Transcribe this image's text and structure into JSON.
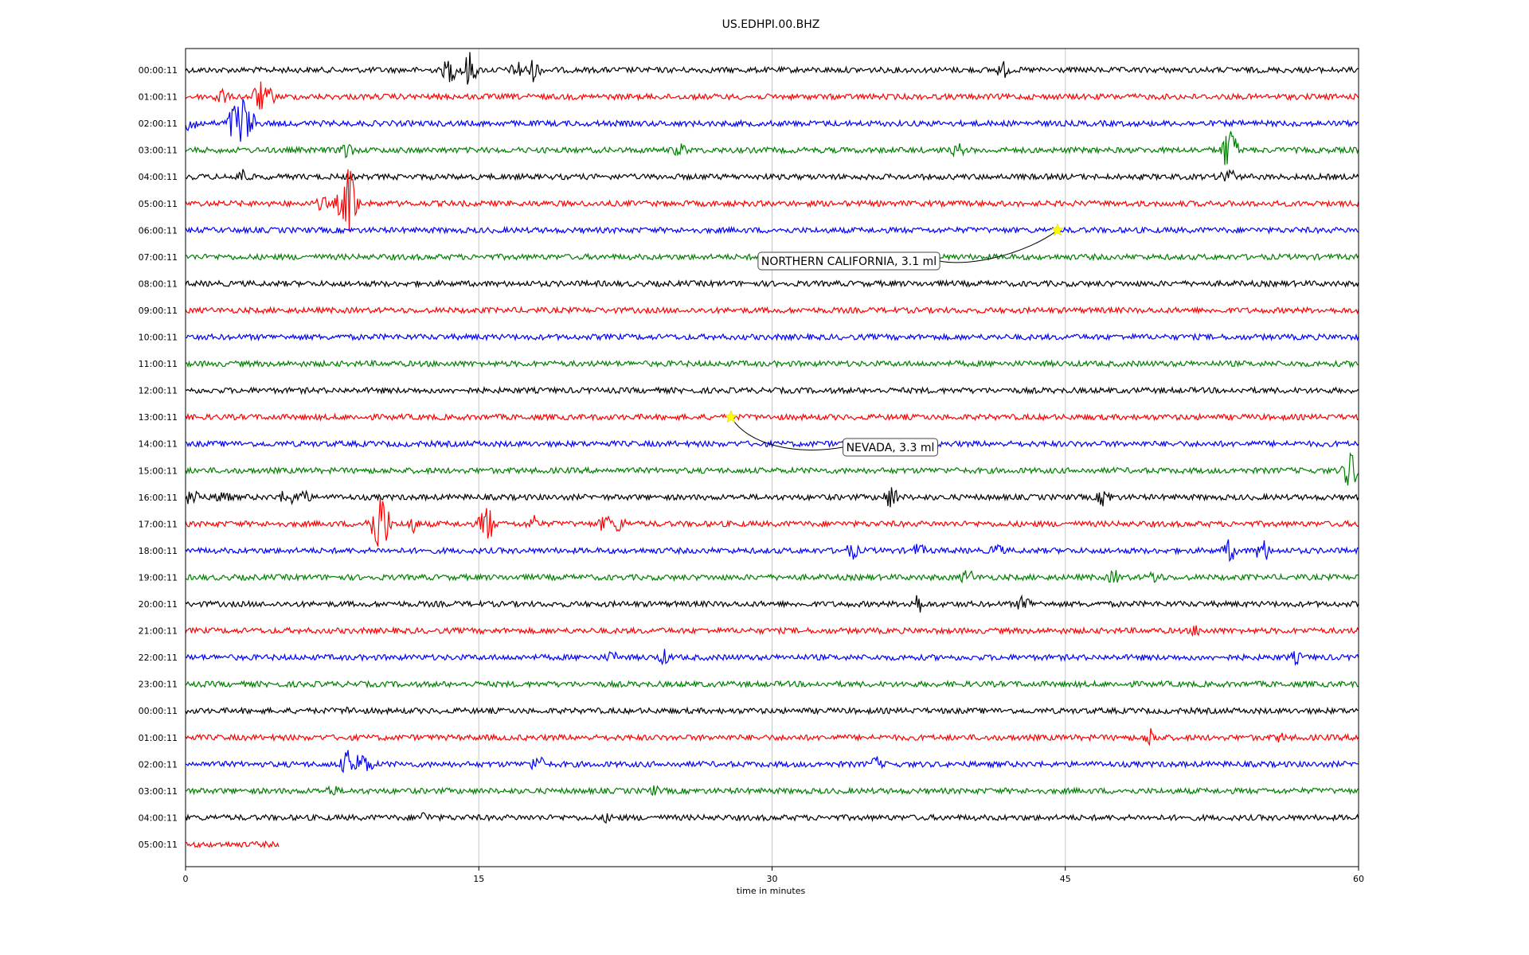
{
  "chart_data": {
    "type": "line",
    "title": "US.EDHPI.00.BHZ",
    "xlabel": "time in minutes",
    "ylabel": "",
    "xlim": [
      0,
      60
    ],
    "x_ticks": [
      0,
      15,
      30,
      45,
      60
    ],
    "grid": "vertical lines at 15-minute ticks",
    "trace_colors": [
      "#000000",
      "#ff0000",
      "#0000ff",
      "#008000"
    ],
    "rows": [
      {
        "label": "00:00:11",
        "end_minute": 60,
        "events": [
          [
            13.5,
            1.2
          ],
          [
            14.5,
            1.6
          ],
          [
            17.0,
            0.9
          ],
          [
            17.8,
            1.0
          ],
          [
            41.8,
            0.8
          ]
        ]
      },
      {
        "label": "01:00:11",
        "end_minute": 60,
        "events": [
          [
            1.8,
            0.9
          ],
          [
            3.8,
            1.4
          ],
          [
            4.3,
            0.8
          ]
        ]
      },
      {
        "label": "02:00:11",
        "end_minute": 60,
        "events": [
          [
            0.3,
            1.0
          ],
          [
            2.5,
            1.8
          ],
          [
            2.9,
            2.6
          ],
          [
            3.3,
            1.2
          ]
        ]
      },
      {
        "label": "03:00:11",
        "end_minute": 60,
        "events": [
          [
            8.2,
            0.9
          ],
          [
            25.3,
            0.7
          ],
          [
            39.5,
            0.7
          ],
          [
            53.4,
            2.2
          ]
        ]
      },
      {
        "label": "04:00:11",
        "end_minute": 60,
        "events": [
          [
            2.9,
            0.8
          ],
          [
            53.3,
            1.0
          ]
        ]
      },
      {
        "label": "05:00:11",
        "end_minute": 60,
        "events": [
          [
            7.0,
            0.7
          ],
          [
            8.0,
            1.3
          ],
          [
            8.4,
            3.2
          ]
        ]
      },
      {
        "label": "06:00:11",
        "end_minute": 60,
        "events": []
      },
      {
        "label": "07:00:11",
        "end_minute": 60,
        "events": []
      },
      {
        "label": "08:00:11",
        "end_minute": 60,
        "events": []
      },
      {
        "label": "09:00:11",
        "end_minute": 60,
        "events": []
      },
      {
        "label": "10:00:11",
        "end_minute": 60,
        "events": []
      },
      {
        "label": "11:00:11",
        "end_minute": 60,
        "events": []
      },
      {
        "label": "12:00:11",
        "end_minute": 60,
        "events": []
      },
      {
        "label": "13:00:11",
        "end_minute": 60,
        "events": []
      },
      {
        "label": "14:00:11",
        "end_minute": 60,
        "events": []
      },
      {
        "label": "15:00:11",
        "end_minute": 60,
        "events": [
          [
            59.6,
            1.8
          ]
        ]
      },
      {
        "label": "16:00:11",
        "end_minute": 60,
        "events": [
          [
            0.4,
            1.0
          ],
          [
            1.9,
            0.8
          ],
          [
            5.2,
            0.9
          ],
          [
            6.0,
            0.8
          ],
          [
            36.1,
            1.1
          ],
          [
            47.0,
            0.9
          ]
        ]
      },
      {
        "label": "17:00:11",
        "end_minute": 60,
        "events": [
          [
            9.6,
            1.4
          ],
          [
            10.0,
            3.2
          ],
          [
            11.6,
            0.8
          ],
          [
            15.4,
            1.8
          ],
          [
            17.8,
            0.8
          ],
          [
            21.5,
            0.9
          ],
          [
            22.2,
            0.8
          ]
        ]
      },
      {
        "label": "18:00:11",
        "end_minute": 60,
        "events": [
          [
            34.1,
            0.8
          ],
          [
            37.5,
            0.7
          ],
          [
            41.5,
            0.7
          ],
          [
            53.4,
            1.0
          ],
          [
            55.1,
            1.1
          ]
        ]
      },
      {
        "label": "19:00:11",
        "end_minute": 60,
        "events": [
          [
            40.0,
            0.8
          ],
          [
            47.5,
            0.7
          ],
          [
            49.6,
            0.7
          ]
        ]
      },
      {
        "label": "20:00:11",
        "end_minute": 60,
        "events": [
          [
            37.4,
            1.0
          ],
          [
            42.9,
            0.9
          ]
        ]
      },
      {
        "label": "21:00:11",
        "end_minute": 60,
        "events": [
          [
            51.7,
            0.6
          ]
        ]
      },
      {
        "label": "22:00:11",
        "end_minute": 60,
        "events": [
          [
            21.8,
            0.6
          ],
          [
            24.5,
            0.7
          ],
          [
            56.8,
            0.6
          ]
        ]
      },
      {
        "label": "23:00:11",
        "end_minute": 60,
        "events": []
      },
      {
        "label": "00:00:11",
        "end_minute": 60,
        "events": [
          [
            8.4,
            0.5
          ]
        ]
      },
      {
        "label": "01:00:11",
        "end_minute": 60,
        "events": [
          [
            49.4,
            0.9
          ],
          [
            56.0,
            0.5
          ]
        ]
      },
      {
        "label": "02:00:11",
        "end_minute": 60,
        "events": [
          [
            8.3,
            1.2
          ],
          [
            8.8,
            1.0
          ],
          [
            9.2,
            1.0
          ],
          [
            18.0,
            0.9
          ],
          [
            35.3,
            0.7
          ]
        ]
      },
      {
        "label": "03:00:11",
        "end_minute": 60,
        "events": [
          [
            7.5,
            0.6
          ],
          [
            24.0,
            0.5
          ]
        ]
      },
      {
        "label": "04:00:11",
        "end_minute": 60,
        "events": [
          [
            12.2,
            0.6
          ],
          [
            21.6,
            0.5
          ]
        ]
      },
      {
        "label": "05:00:11",
        "end_minute": 4.8,
        "events": []
      }
    ],
    "annotations": [
      {
        "text": "NORTHERN CALIFORNIA, 3.1 ml",
        "row": 6,
        "minute": 44.6
      },
      {
        "text": "NEVADA, 3.3 ml",
        "row": 13,
        "minute": 27.9
      }
    ]
  }
}
